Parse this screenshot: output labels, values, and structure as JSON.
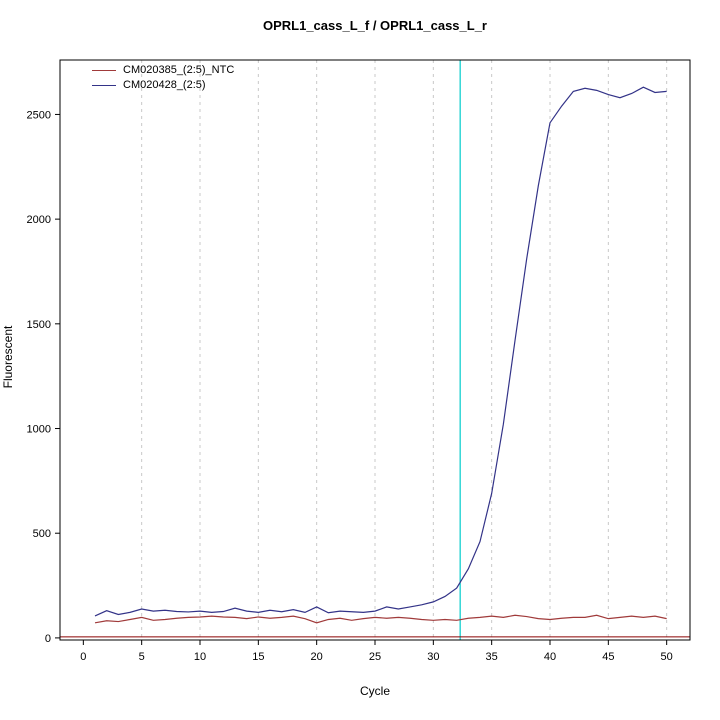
{
  "title": "OPRL1_cass_L_f / OPRL1_cass_L_r",
  "chart_data": {
    "type": "line",
    "title": "OPRL1_cass_L_f / OPRL1_cass_L_r",
    "xlabel": "Cycle",
    "ylabel": "Fluorescent",
    "xlim": [
      -2,
      52
    ],
    "ylim": [
      -10,
      2760
    ],
    "x_ticks": [
      0,
      5,
      10,
      15,
      20,
      25,
      30,
      35,
      40,
      45,
      50
    ],
    "y_ticks": [
      0,
      500,
      1000,
      1500,
      2000,
      2500
    ],
    "grid": {
      "vertical_dashed_at": [
        5,
        10,
        15,
        20,
        25,
        30,
        35,
        40,
        45,
        50
      ],
      "color": "#c8c8c8"
    },
    "threshold_vline": {
      "x": 32.3,
      "color": "#00cccc"
    },
    "baseline_hline": {
      "y": 5,
      "color": "#8b0000"
    },
    "legend_position": "top-left",
    "x": [
      1,
      2,
      3,
      4,
      5,
      6,
      7,
      8,
      9,
      10,
      11,
      12,
      13,
      14,
      15,
      16,
      17,
      18,
      19,
      20,
      21,
      22,
      23,
      24,
      25,
      26,
      27,
      28,
      29,
      30,
      31,
      32,
      33,
      34,
      35,
      36,
      37,
      38,
      39,
      40,
      41,
      42,
      43,
      44,
      45,
      46,
      47,
      48,
      49,
      50
    ],
    "series": [
      {
        "name": "CM020385_(2:5)_NTC",
        "color": "#a03a3a",
        "values": [
          72,
          82,
          78,
          88,
          98,
          84,
          88,
          94,
          98,
          100,
          104,
          100,
          98,
          92,
          100,
          94,
          98,
          104,
          92,
          72,
          88,
          94,
          84,
          92,
          98,
          94,
          98,
          94,
          88,
          84,
          88,
          84,
          94,
          98,
          104,
          98,
          108,
          102,
          92,
          88,
          94,
          98,
          98,
          108,
          92,
          98,
          104,
          98,
          104,
          92
        ]
      },
      {
        "name": "CM020428_(2:5)",
        "color": "#333388",
        "values": [
          105,
          130,
          112,
          122,
          138,
          128,
          132,
          126,
          124,
          128,
          122,
          126,
          142,
          128,
          122,
          132,
          125,
          135,
          122,
          148,
          120,
          128,
          125,
          122,
          128,
          148,
          138,
          148,
          158,
          172,
          198,
          238,
          330,
          460,
          690,
          1020,
          1420,
          1810,
          2160,
          2460,
          2540,
          2610,
          2625,
          2615,
          2595,
          2580,
          2600,
          2630,
          2605,
          2610
        ]
      }
    ]
  }
}
